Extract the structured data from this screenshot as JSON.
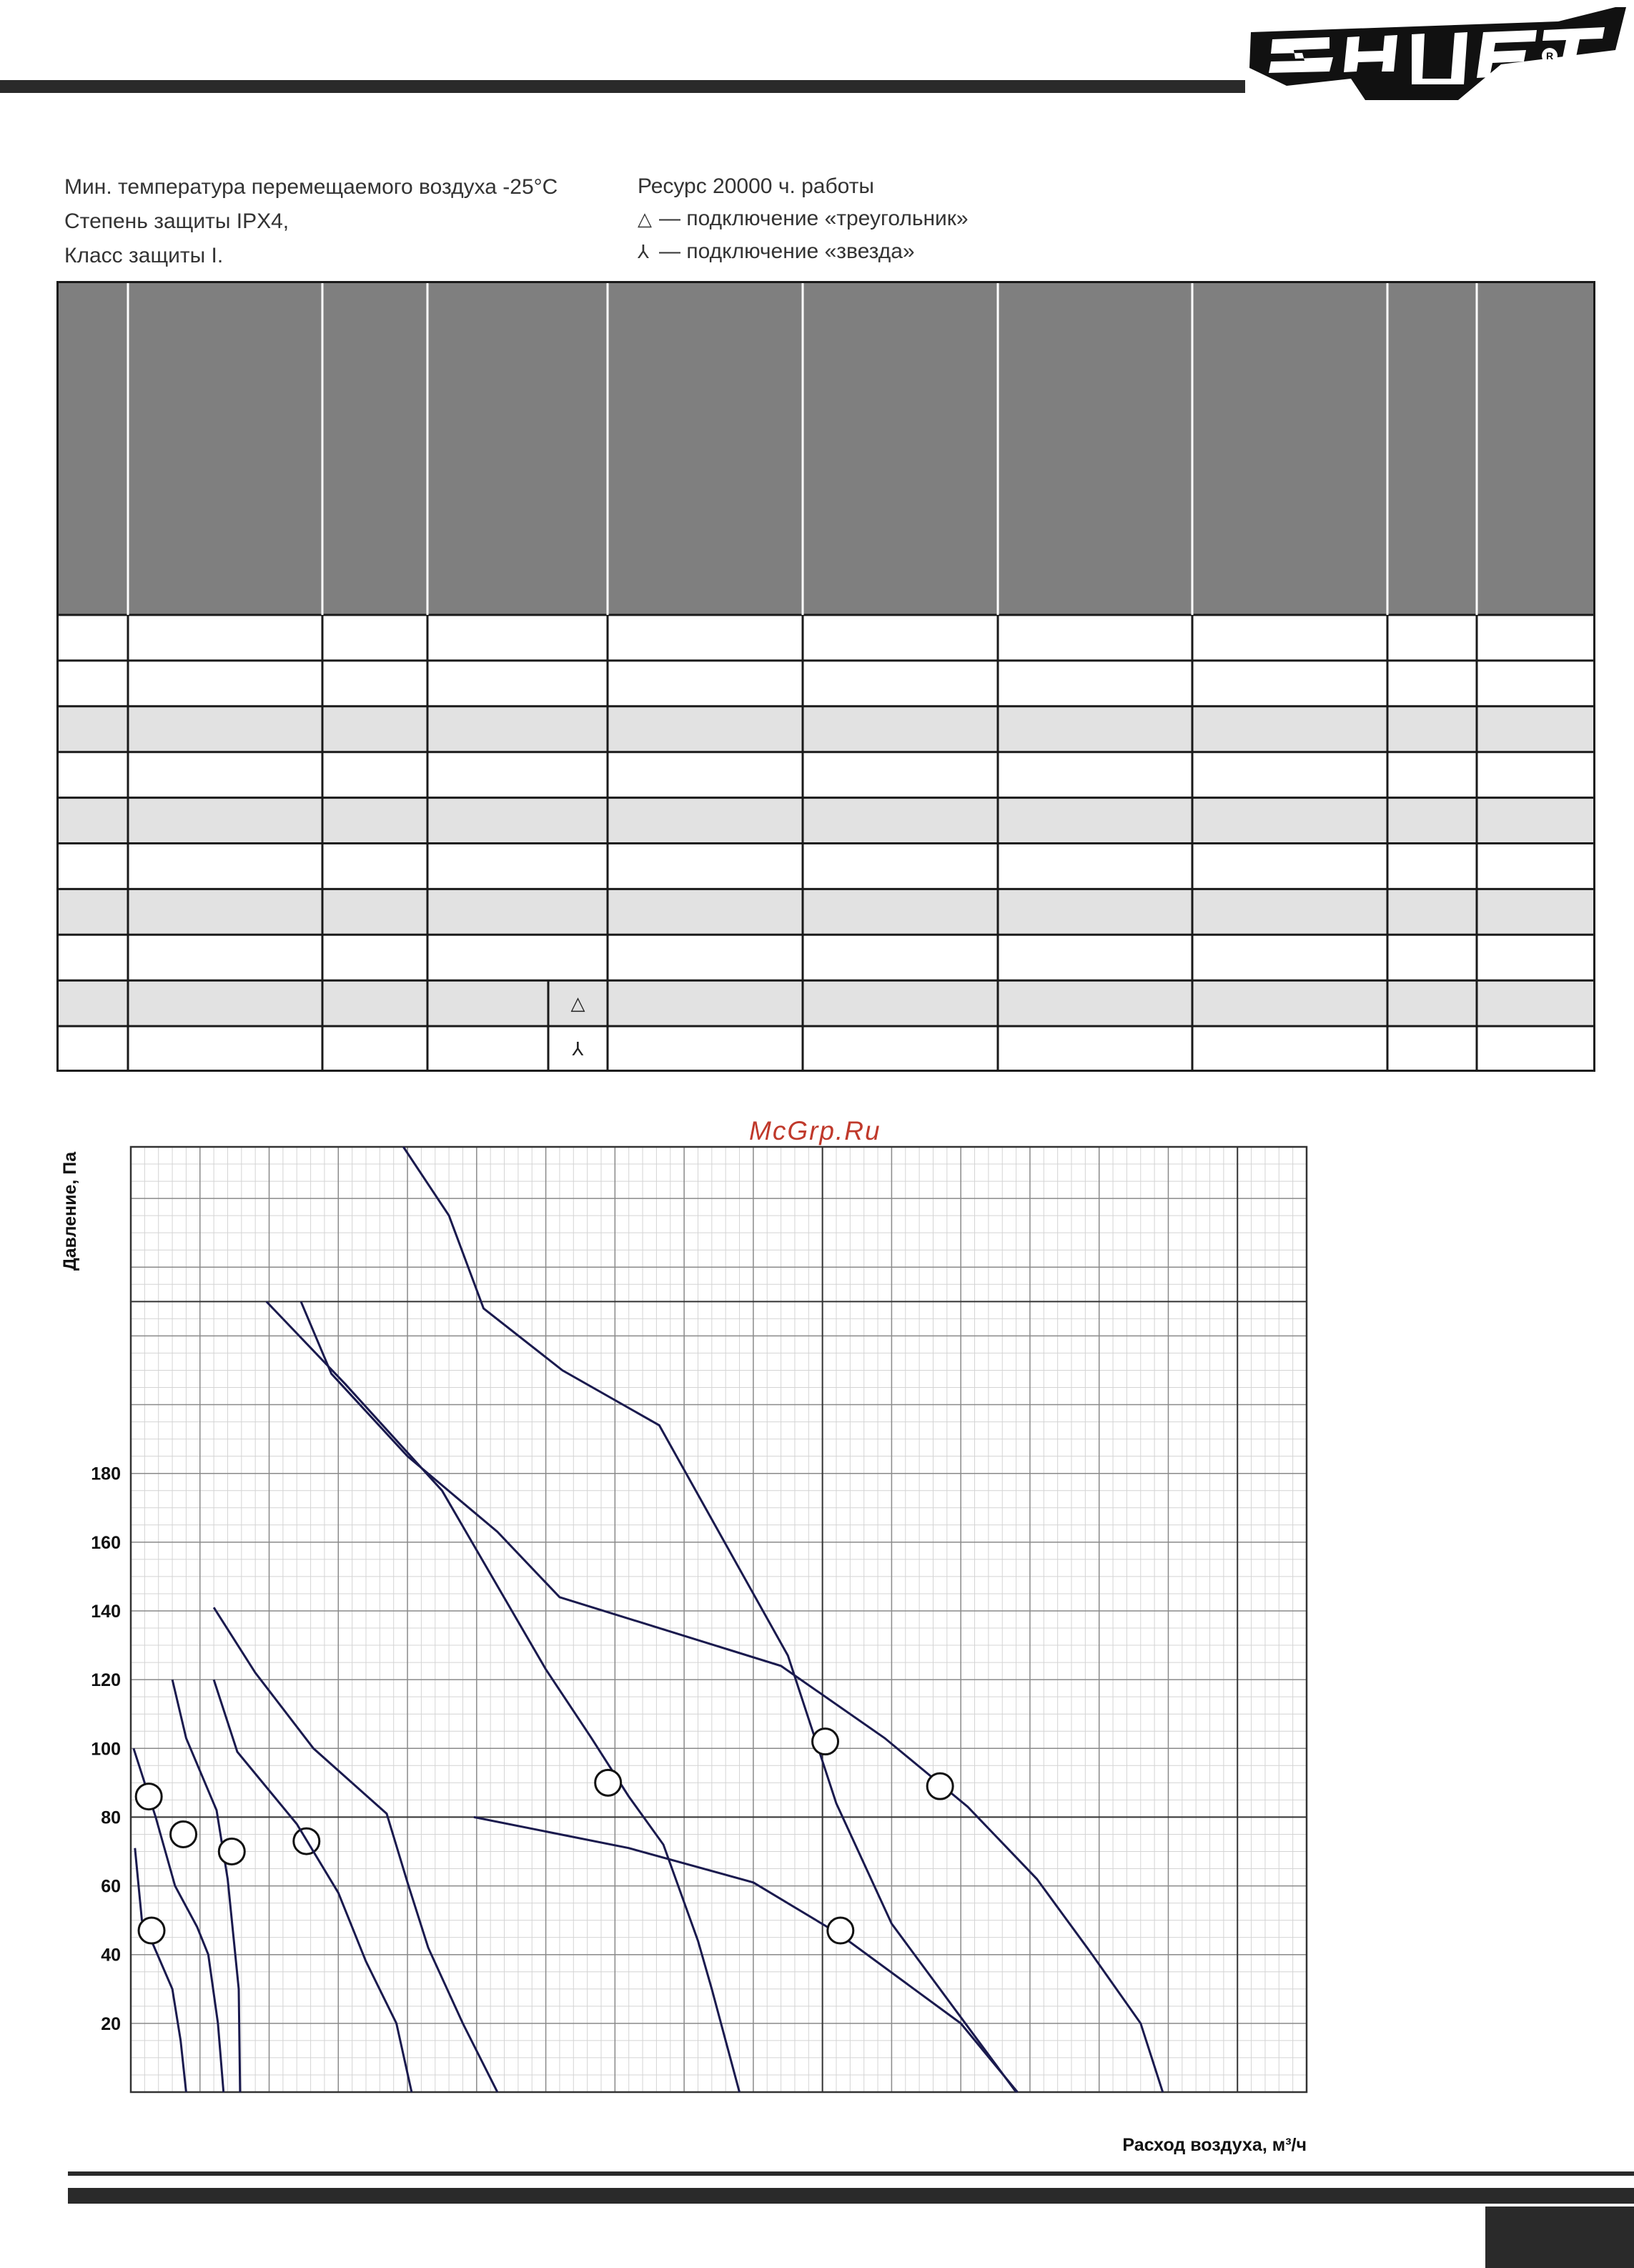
{
  "brand": {
    "logo_text": "SHUFT",
    "registered_mark": "R"
  },
  "notes": {
    "left": [
      "Мин. температура перемещаемого воздуха -25°С",
      "Степень защиты IPX4,",
      "Класс защиты I."
    ],
    "right": [
      {
        "symbol": "",
        "text": "Ресурс 20000 ч. работы"
      },
      {
        "symbol": "△",
        "text": "— подключение «треугольник»"
      },
      {
        "symbol": "⅄",
        "text": "— подключение «звезда»"
      }
    ]
  },
  "table": {
    "rows": [
      {
        "shade": false,
        "connection": ""
      },
      {
        "shade": false,
        "connection": ""
      },
      {
        "shade": true,
        "connection": ""
      },
      {
        "shade": false,
        "connection": ""
      },
      {
        "shade": true,
        "connection": ""
      },
      {
        "shade": false,
        "connection": ""
      },
      {
        "shade": true,
        "connection": ""
      },
      {
        "shade": false,
        "connection": ""
      },
      {
        "shade": true,
        "connection": "△"
      },
      {
        "shade": false,
        "connection": "⅄"
      }
    ],
    "colors": {
      "header": "#7f7f7f",
      "shade": "#e2e2e2",
      "border": "#1a1a1a"
    }
  },
  "watermark": "McGrp.Ru",
  "chart_data": {
    "type": "line",
    "title": "",
    "xlabel": "Расход воздуха, м³/ч",
    "ylabel": "Давление, Па",
    "yticks": [
      20,
      40,
      60,
      80,
      100,
      120,
      140,
      160,
      180
    ],
    "ylim": [
      0,
      275
    ],
    "xlim": [
      0,
      850
    ],
    "grid": true,
    "curve_color": "#1a1a4e",
    "series": [
      {
        "points": [
          [
            3,
            71
          ],
          [
            8,
            50
          ],
          [
            15,
            44
          ],
          [
            30,
            30
          ],
          [
            36,
            15
          ],
          [
            40,
            0
          ]
        ],
        "marker": [
          15,
          47
        ]
      },
      {
        "points": [
          [
            2,
            100
          ],
          [
            18,
            80
          ],
          [
            32,
            60
          ],
          [
            48,
            48
          ],
          [
            56,
            40
          ],
          [
            63,
            20
          ],
          [
            67,
            0
          ]
        ],
        "marker": [
          13,
          86
        ]
      },
      {
        "points": [
          [
            30,
            120
          ],
          [
            40,
            103
          ],
          [
            62,
            82
          ],
          [
            70,
            62
          ],
          [
            78,
            30
          ],
          [
            79,
            0
          ]
        ],
        "marker": [
          38,
          75
        ]
      },
      {
        "points": [
          [
            60,
            141
          ],
          [
            90,
            122
          ],
          [
            132,
            100
          ],
          [
            185,
            81
          ],
          [
            200,
            61
          ],
          [
            215,
            42
          ],
          [
            240,
            20
          ],
          [
            265,
            0
          ]
        ],
        "marker": [
          127,
          73
        ]
      },
      {
        "points": [
          [
            60,
            120
          ],
          [
            77,
            99
          ],
          [
            120,
            78
          ],
          [
            150,
            58
          ],
          [
            170,
            38
          ],
          [
            192,
            20
          ],
          [
            203,
            0
          ]
        ],
        "marker": [
          73,
          70
        ]
      },
      {
        "points": [
          [
            197,
            275
          ],
          [
            230,
            255
          ],
          [
            255,
            228
          ],
          [
            312,
            210
          ],
          [
            382,
            194
          ],
          [
            475,
            127
          ],
          [
            510,
            84
          ],
          [
            550,
            49
          ],
          [
            640,
            0
          ]
        ],
        "marker": [
          502,
          102
        ]
      },
      {
        "points": [
          [
            123,
            230
          ],
          [
            145,
            209
          ],
          [
            200,
            185
          ],
          [
            265,
            163
          ],
          [
            310,
            144
          ],
          [
            470,
            124
          ],
          [
            545,
            103
          ],
          [
            605,
            83
          ],
          [
            655,
            62
          ],
          [
            695,
            40
          ],
          [
            730,
            20
          ],
          [
            746,
            0
          ]
        ],
        "marker": [
          585,
          89
        ]
      },
      {
        "points": [
          [
            98,
            230
          ],
          [
            155,
            206
          ],
          [
            225,
            175
          ],
          [
            300,
            123
          ],
          [
            333,
            103
          ],
          [
            360,
            86
          ],
          [
            385,
            72
          ],
          [
            410,
            44
          ],
          [
            420,
            30
          ],
          [
            440,
            0
          ]
        ],
        "marker": [
          345,
          90
        ]
      },
      {
        "points": [
          [
            248,
            80
          ],
          [
            360,
            71
          ],
          [
            450,
            61
          ],
          [
            512,
            46
          ],
          [
            600,
            20
          ],
          [
            641,
            0
          ]
        ],
        "marker": [
          513,
          47
        ]
      }
    ]
  }
}
